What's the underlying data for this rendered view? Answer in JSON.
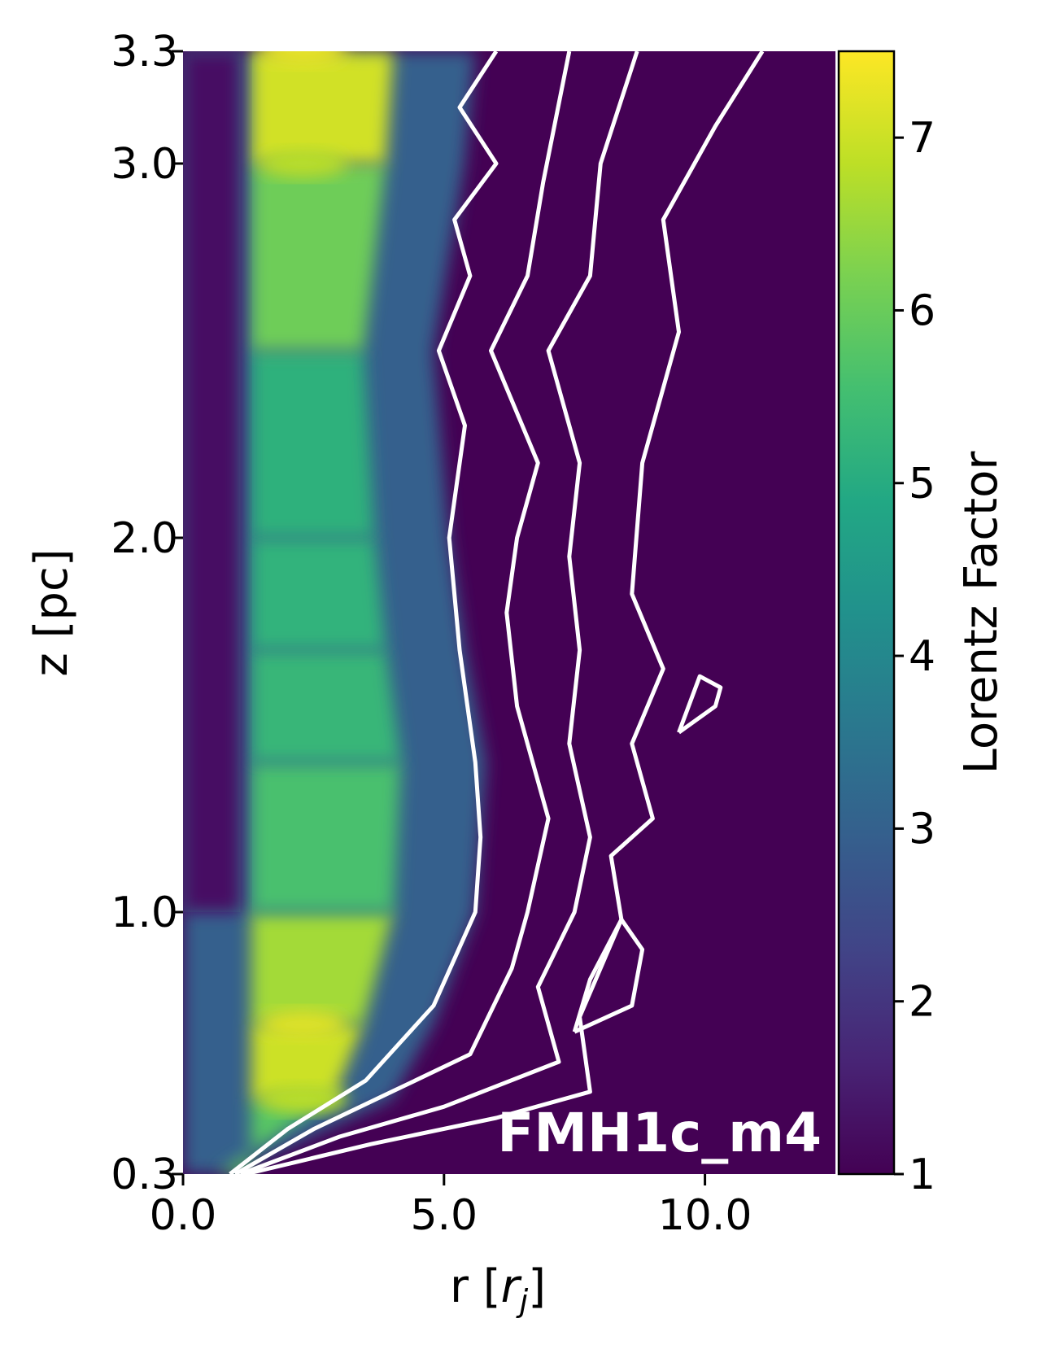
{
  "chart_data": {
    "type": "heatmap",
    "title": "",
    "xlabel": "r [r_j]",
    "xlabel_main": "r [",
    "xlabel_var": "r",
    "xlabel_sub": "j",
    "xlabel_close": "]",
    "ylabel": "z [pc]",
    "colorbar_label": "Lorentz Factor",
    "panel_label": "FMH1c_m4",
    "x_ticks": [
      {
        "value": 0.0,
        "label": "0.0"
      },
      {
        "value": 5.0,
        "label": "5.0"
      },
      {
        "value": 10.0,
        "label": "10.0"
      }
    ],
    "y_ticks": [
      {
        "value": 0.3,
        "label": "0.3"
      },
      {
        "value": 1.0,
        "label": "1.0"
      },
      {
        "value": 2.0,
        "label": "2.0"
      },
      {
        "value": 3.0,
        "label": "3.0"
      },
      {
        "value": 3.3,
        "label": "3.3"
      }
    ],
    "colorbar_ticks": [
      {
        "value": 1,
        "label": "1"
      },
      {
        "value": 2,
        "label": "2"
      },
      {
        "value": 3,
        "label": "3"
      },
      {
        "value": 4,
        "label": "4"
      },
      {
        "value": 5,
        "label": "5"
      },
      {
        "value": 6,
        "label": "6"
      },
      {
        "value": 7,
        "label": "7"
      }
    ],
    "xlim": [
      0.0,
      12.5
    ],
    "ylim": [
      0.3,
      3.3
    ],
    "colorbar_range": [
      1.0,
      7.5
    ],
    "colormap": "viridis",
    "contour_color": "#ffffff",
    "jet_profile": [
      {
        "z": 0.3,
        "edge_r": 0.9,
        "peak": 4.8
      },
      {
        "z": 0.5,
        "edge_r": 4.0,
        "peak": 6.8
      },
      {
        "z": 0.7,
        "edge_r": 4.8,
        "peak": 7.2
      },
      {
        "z": 1.0,
        "edge_r": 5.6,
        "peak": 6.0
      },
      {
        "z": 1.4,
        "edge_r": 5.8,
        "peak": 5.2
      },
      {
        "z": 1.7,
        "edge_r": 5.4,
        "peak": 5.4
      },
      {
        "z": 2.0,
        "edge_r": 5.1,
        "peak": 5.0
      },
      {
        "z": 2.5,
        "edge_r": 4.8,
        "peak": 5.3
      },
      {
        "z": 3.0,
        "edge_r": 5.4,
        "peak": 6.8
      },
      {
        "z": 3.3,
        "edge_r": 5.6,
        "peak": 7.3
      }
    ],
    "contours": [
      {
        "name": "",
        "points": [
          [
            0.9,
            0.3
          ],
          [
            2.0,
            0.42
          ],
          [
            3.5,
            0.55
          ],
          [
            4.8,
            0.75
          ],
          [
            5.6,
            1.0
          ],
          [
            5.7,
            1.2
          ],
          [
            5.6,
            1.4
          ],
          [
            5.3,
            1.7
          ],
          [
            5.1,
            2.0
          ],
          [
            5.4,
            2.3
          ],
          [
            4.9,
            2.5
          ],
          [
            5.5,
            2.7
          ],
          [
            5.2,
            2.85
          ],
          [
            6.0,
            3.0
          ],
          [
            5.3,
            3.15
          ],
          [
            6.0,
            3.3
          ]
        ]
      },
      {
        "name": "",
        "points": [
          [
            1.0,
            0.3
          ],
          [
            2.5,
            0.42
          ],
          [
            4.0,
            0.52
          ],
          [
            5.5,
            0.62
          ],
          [
            6.3,
            0.85
          ],
          [
            6.6,
            1.0
          ],
          [
            7.0,
            1.25
          ],
          [
            6.4,
            1.55
          ],
          [
            6.2,
            1.8
          ],
          [
            6.4,
            2.0
          ],
          [
            6.8,
            2.2
          ],
          [
            5.9,
            2.5
          ],
          [
            6.6,
            2.7
          ],
          [
            6.9,
            2.95
          ],
          [
            7.4,
            3.3
          ]
        ]
      },
      {
        "name": "",
        "points": [
          [
            1.1,
            0.3
          ],
          [
            3.0,
            0.4
          ],
          [
            5.0,
            0.48
          ],
          [
            7.2,
            0.6
          ],
          [
            6.8,
            0.8
          ],
          [
            7.5,
            1.0
          ],
          [
            7.8,
            1.2
          ],
          [
            7.4,
            1.45
          ],
          [
            7.6,
            1.7
          ],
          [
            7.4,
            1.95
          ],
          [
            7.6,
            2.2
          ],
          [
            7.0,
            2.5
          ],
          [
            7.8,
            2.7
          ],
          [
            8.0,
            3.0
          ],
          [
            8.7,
            3.3
          ]
        ]
      },
      {
        "name": "",
        "points": [
          [
            1.2,
            0.3
          ],
          [
            3.6,
            0.38
          ],
          [
            6.0,
            0.45
          ],
          [
            7.8,
            0.52
          ],
          [
            7.6,
            0.72
          ],
          [
            8.4,
            0.98
          ],
          [
            8.2,
            1.15
          ],
          [
            9.0,
            1.25
          ],
          [
            8.6,
            1.45
          ],
          [
            9.2,
            1.65
          ],
          [
            8.6,
            1.85
          ],
          [
            8.8,
            2.2
          ],
          [
            9.5,
            2.55
          ],
          [
            9.2,
            2.85
          ],
          [
            10.2,
            3.1
          ],
          [
            11.1,
            3.3
          ]
        ]
      },
      {
        "name": "",
        "points": [
          [
            7.5,
            0.68
          ],
          [
            8.6,
            0.75
          ],
          [
            8.8,
            0.9
          ],
          [
            8.4,
            0.98
          ],
          [
            7.8,
            0.82
          ],
          [
            7.5,
            0.68
          ]
        ]
      },
      {
        "name": "",
        "points": [
          [
            9.5,
            1.48
          ],
          [
            10.2,
            1.55
          ],
          [
            10.3,
            1.6
          ],
          [
            9.9,
            1.63
          ],
          [
            9.5,
            1.48
          ]
        ]
      }
    ]
  }
}
